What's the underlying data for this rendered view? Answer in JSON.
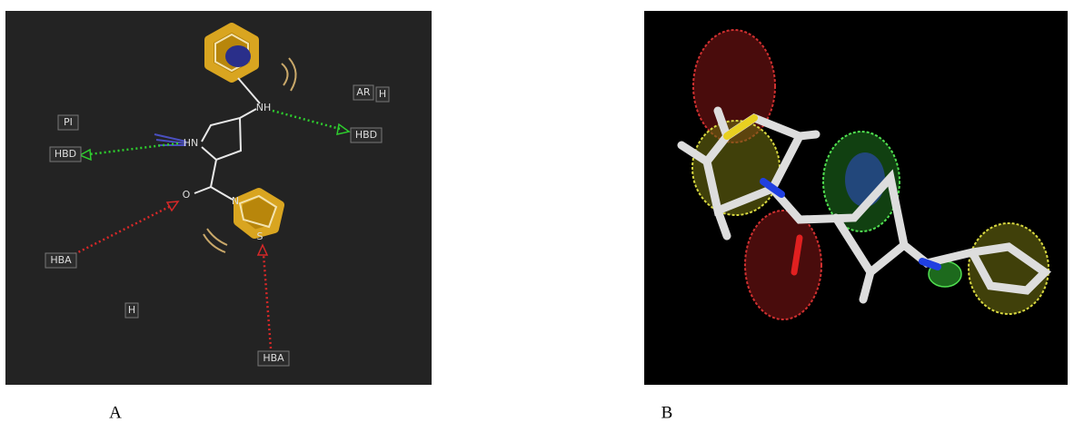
{
  "panels": [
    {
      "caption": "A",
      "labels": [
        "PI",
        "HBD",
        "HN",
        "NH",
        "HBD",
        "AR",
        "H",
        "O",
        "N",
        "S",
        "HBA",
        "H",
        "HBA"
      ]
    },
    {
      "caption": "B"
    }
  ]
}
